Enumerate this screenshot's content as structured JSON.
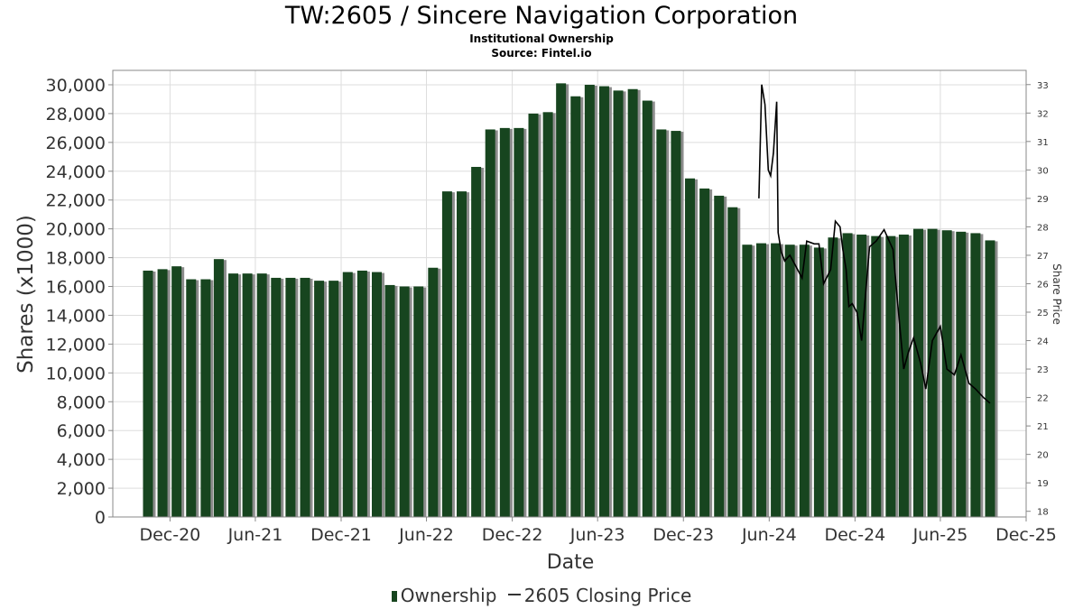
{
  "header": {
    "title": "TW:2605 / Sincere Navigation Corporation",
    "subtitle": "Institutional Ownership",
    "source": "Source: Fintel.io"
  },
  "legend": {
    "ownership_label": "Ownership",
    "price_label": "2605 Closing Price"
  },
  "colors": {
    "bar": "#17451f",
    "bar_shadow": "#8c8c8c",
    "price_line": "#000000",
    "grid": "#dddddd"
  },
  "chart_data": {
    "type": "bar",
    "title": "TW:2605 / Sincere Navigation Corporation",
    "xlabel": "Date",
    "ylabel": "Shares (x1000)",
    "y2label": "Share Price",
    "grid": true,
    "legend_position": "bottom",
    "x_range": [
      "2020-08-01",
      "2025-12-01"
    ],
    "x_ticks": [
      {
        "date": "2020-12-01",
        "label": "Dec-20"
      },
      {
        "date": "2021-06-01",
        "label": "Jun-21"
      },
      {
        "date": "2021-12-01",
        "label": "Dec-21"
      },
      {
        "date": "2022-06-01",
        "label": "Jun-22"
      },
      {
        "date": "2022-12-01",
        "label": "Dec-22"
      },
      {
        "date": "2023-06-01",
        "label": "Jun-23"
      },
      {
        "date": "2023-12-01",
        "label": "Dec-23"
      },
      {
        "date": "2024-06-01",
        "label": "Jun-24"
      },
      {
        "date": "2024-12-01",
        "label": "Dec-24"
      },
      {
        "date": "2025-06-01",
        "label": "Jun-25"
      },
      {
        "date": "2025-12-01",
        "label": "Dec-25"
      }
    ],
    "ylim": [
      0,
      31000
    ],
    "y_ticks": [
      0,
      2000,
      4000,
      6000,
      8000,
      10000,
      12000,
      14000,
      16000,
      18000,
      20000,
      22000,
      24000,
      26000,
      28000,
      30000
    ],
    "y_tick_labels": [
      "0",
      "2,000",
      "4,000",
      "6,000",
      "8,000",
      "10,000",
      "12,000",
      "14,000",
      "16,000",
      "18,000",
      "20,000",
      "22,000",
      "24,000",
      "26,000",
      "28,000",
      "30,000"
    ],
    "y2lim": [
      17.8,
      33.5
    ],
    "y2_ticks": [
      18,
      19,
      20,
      21,
      22,
      23,
      24,
      25,
      26,
      27,
      28,
      29,
      30,
      31,
      32,
      33
    ],
    "series": [
      {
        "name": "Ownership",
        "type": "bar",
        "x": [
          "2020-10-15",
          "2020-11-15",
          "2020-12-15",
          "2021-01-15",
          "2021-02-15",
          "2021-03-15",
          "2021-04-15",
          "2021-05-15",
          "2021-06-15",
          "2021-07-15",
          "2021-08-15",
          "2021-09-15",
          "2021-10-15",
          "2021-11-15",
          "2021-12-15",
          "2022-01-15",
          "2022-02-15",
          "2022-03-15",
          "2022-04-15",
          "2022-05-15",
          "2022-06-15",
          "2022-07-15",
          "2022-08-15",
          "2022-09-15",
          "2022-10-15",
          "2022-11-15",
          "2022-12-15",
          "2023-01-15",
          "2023-02-15",
          "2023-03-15",
          "2023-04-15",
          "2023-05-15",
          "2023-06-15",
          "2023-07-15",
          "2023-08-15",
          "2023-09-15",
          "2023-10-15",
          "2023-11-15",
          "2023-12-15",
          "2024-01-15",
          "2024-02-15",
          "2024-03-15",
          "2024-04-15",
          "2024-05-15",
          "2024-06-15",
          "2024-07-15",
          "2024-08-15",
          "2024-09-15",
          "2024-10-15",
          "2024-11-15",
          "2024-12-15",
          "2025-01-15",
          "2025-02-15",
          "2025-03-15",
          "2025-04-15",
          "2025-05-15",
          "2025-06-15",
          "2025-07-15",
          "2025-08-15",
          "2025-09-15"
        ],
        "values": [
          17100,
          17200,
          17400,
          16500,
          16500,
          17900,
          16900,
          16900,
          16900,
          16600,
          16600,
          16600,
          16400,
          16400,
          17000,
          17100,
          17000,
          16100,
          16000,
          16000,
          17300,
          22600,
          22600,
          24300,
          26900,
          27000,
          27000,
          28000,
          28100,
          30100,
          29200,
          30000,
          29900,
          29600,
          29700,
          28900,
          26900,
          26800,
          23500,
          22800,
          22300,
          21500,
          18900,
          19000,
          19000,
          18900,
          18900,
          18700,
          19400,
          19700,
          19600,
          19500,
          19500,
          19600,
          20000,
          20000,
          19900,
          19800,
          19700,
          19200
        ]
      },
      {
        "name": "2605 Closing Price",
        "type": "line",
        "x": [
          "2024-05-10",
          "2024-05-16",
          "2024-05-23",
          "2024-05-30",
          "2024-06-04",
          "2024-06-10",
          "2024-06-17",
          "2024-06-20",
          "2024-06-27",
          "2024-07-04",
          "2024-07-15",
          "2024-07-25",
          "2024-08-10",
          "2024-08-20",
          "2024-09-05",
          "2024-09-15",
          "2024-09-25",
          "2024-10-10",
          "2024-10-20",
          "2024-10-30",
          "2024-11-05",
          "2024-11-12",
          "2024-11-18",
          "2024-11-25",
          "2024-12-05",
          "2024-12-15",
          "2025-01-01",
          "2025-01-15",
          "2025-02-01",
          "2025-02-20",
          "2025-03-01",
          "2025-03-15",
          "2025-03-25",
          "2025-04-05",
          "2025-04-20",
          "2025-05-01",
          "2025-05-15",
          "2025-06-01",
          "2025-06-15",
          "2025-07-01",
          "2025-07-15",
          "2025-08-01",
          "2025-08-15",
          "2025-09-01",
          "2025-09-15"
        ],
        "values": [
          29.0,
          33.0,
          32.3,
          30.0,
          29.8,
          30.6,
          32.4,
          27.8,
          27.1,
          26.8,
          27.0,
          26.7,
          26.2,
          27.5,
          27.4,
          27.4,
          26.0,
          26.5,
          28.2,
          28.0,
          27.2,
          26.5,
          25.2,
          25.3,
          25.0,
          24.0,
          27.3,
          27.5,
          27.9,
          27.2,
          25.5,
          23.0,
          23.6,
          24.1,
          23.2,
          22.3,
          24.0,
          24.5,
          23.0,
          22.8,
          23.5,
          22.5,
          22.3,
          22.0,
          21.8
        ]
      }
    ]
  }
}
